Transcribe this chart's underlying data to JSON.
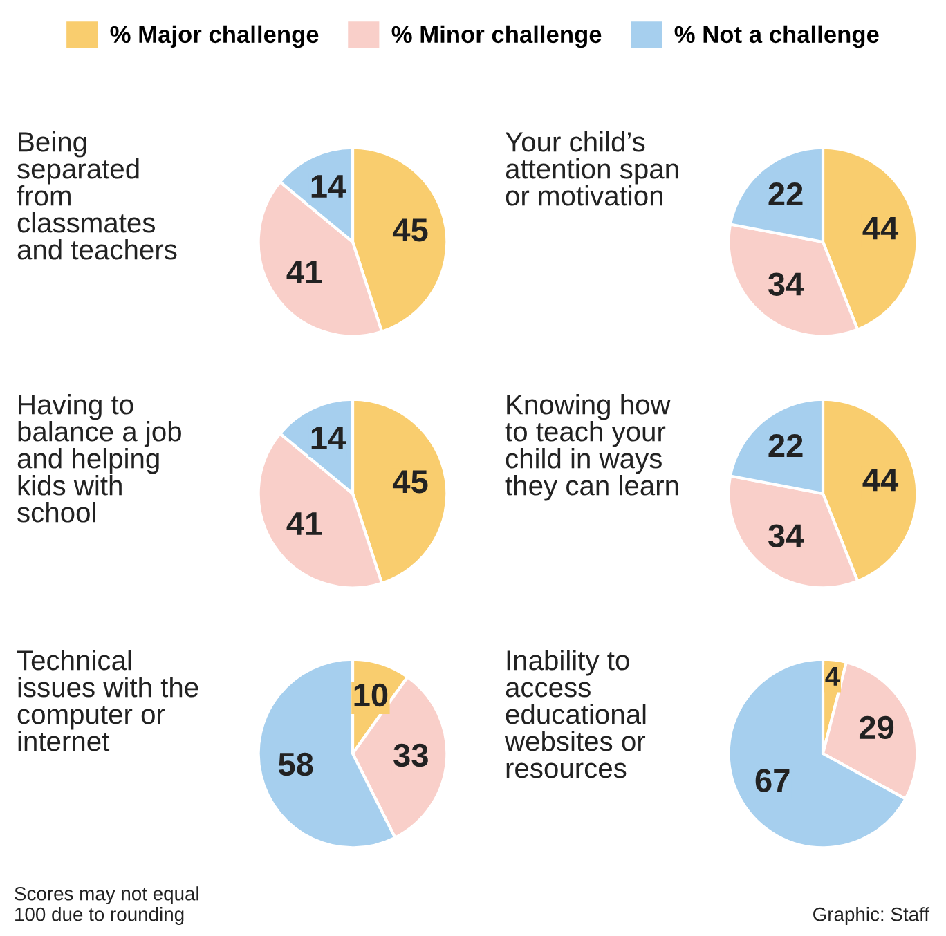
{
  "chart_data": [
    {
      "type": "pie",
      "title": "Being\nseparated\nfrom\nclassmates\nand teachers",
      "categories": [
        "% Major challenge",
        "% Minor challenge",
        "% Not a challenge"
      ],
      "values": [
        45,
        41,
        14
      ],
      "colors": [
        "#f9cd6e",
        "#f9cfc9",
        "#a6cfee"
      ],
      "data_labels": true,
      "legend": "top"
    },
    {
      "type": "pie",
      "title": "Your child’s\nattention span\nor motivation",
      "values": [
        44,
        34,
        22
      ],
      "colors": [
        "#f9cd6e",
        "#f9cfc9",
        "#a6cfee"
      ],
      "data_labels": true
    },
    {
      "type": "pie",
      "title": "Having to\nbalance a job\nand helping\nkids with\nschool",
      "values": [
        45,
        41,
        14
      ],
      "colors": [
        "#f9cd6e",
        "#f9cfc9",
        "#a6cfee"
      ],
      "data_labels": true
    },
    {
      "type": "pie",
      "title": "Knowing how\nto teach your\nchild in ways\nthey can learn",
      "values": [
        44,
        34,
        22
      ],
      "colors": [
        "#f9cd6e",
        "#f9cfc9",
        "#a6cfee"
      ],
      "data_labels": true
    },
    {
      "type": "pie",
      "title": "Technical\nissues with the\ncomputer or\ninternet",
      "values": [
        10,
        33,
        58
      ],
      "colors": [
        "#f9cd6e",
        "#f9cfc9",
        "#a6cfee"
      ],
      "data_labels": true,
      "annotations": [
        "Scores may not equal\n100 due to rounding"
      ]
    },
    {
      "type": "pie",
      "title": "Inability to\naccess\neducational\nwebsites or\nresources",
      "values": [
        4,
        29,
        67
      ],
      "colors": [
        "#f9cd6e",
        "#f9cfc9",
        "#a6cfee"
      ],
      "data_labels": true,
      "annotations": [
        "Graphic: Staff"
      ]
    }
  ]
}
